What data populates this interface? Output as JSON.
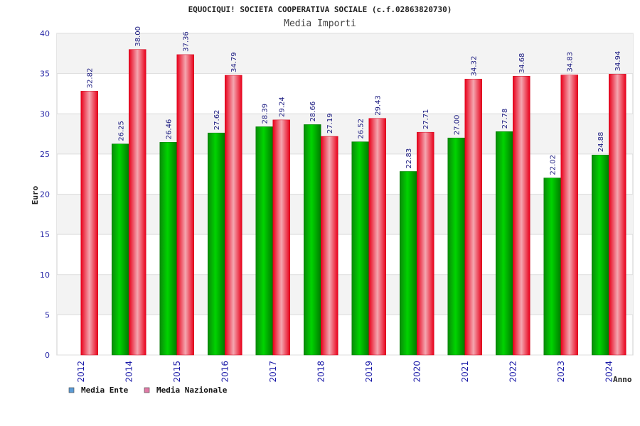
{
  "chart_data": {
    "type": "bar",
    "title": "EQUOCIQUI! SOCIETA COOPERATIVA SOCIALE (c.f.02863820730)",
    "subtitle": "Media Importi",
    "xlabel": "Anno",
    "ylabel": "Euro",
    "ylim": [
      0,
      40
    ],
    "yticks": [
      0,
      5,
      10,
      15,
      20,
      25,
      30,
      35,
      40
    ],
    "grid": true,
    "legend_position": "bottom-left",
    "categories": [
      "2012",
      "2014",
      "2015",
      "2016",
      "2017",
      "2018",
      "2019",
      "2020",
      "2021",
      "2022",
      "2023",
      "2024"
    ],
    "series": [
      {
        "name": "Media Ente",
        "legend_color": "#5b9bd5",
        "bar_color": "#11aa11",
        "values": [
          null,
          26.25,
          26.46,
          27.62,
          28.39,
          28.66,
          26.52,
          22.83,
          27.0,
          27.78,
          22.02,
          24.88
        ],
        "labels": [
          "",
          "26.25",
          "26.46",
          "27.62",
          "28.39",
          "28.66",
          "26.52",
          "22.83",
          "27.00",
          "27.78",
          "22.02",
          "24.88"
        ]
      },
      {
        "name": "Media Nazionale",
        "legend_color": "#e07aa6",
        "bar_color": "#ee1122",
        "values": [
          32.82,
          38.0,
          37.36,
          34.79,
          29.24,
          27.19,
          29.43,
          27.71,
          34.32,
          34.68,
          34.83,
          34.94
        ],
        "labels": [
          "32.82",
          "38.00",
          "37.36",
          "34.79",
          "29.24",
          "27.19",
          "29.43",
          "27.71",
          "34.32",
          "34.68",
          "34.83",
          "34.94"
        ]
      }
    ]
  }
}
